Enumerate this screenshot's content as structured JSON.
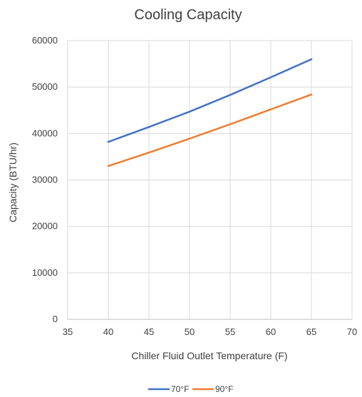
{
  "chart_data": {
    "type": "line",
    "title": "Cooling Capacity",
    "xlabel": "Chiller Fluid Outlet Temperature (F)",
    "ylabel": "Capacity (BTU/hr)",
    "xlim": [
      35,
      70
    ],
    "ylim": [
      0,
      60000
    ],
    "xticks": [
      35,
      40,
      45,
      50,
      55,
      60,
      65,
      70
    ],
    "yticks": [
      0,
      10000,
      20000,
      30000,
      40000,
      50000,
      60000
    ],
    "grid": true,
    "legend_position": "bottom",
    "series": [
      {
        "name": "70°F",
        "color": "#4472c4",
        "x": [
          40,
          45,
          50,
          55,
          60,
          65
        ],
        "y": [
          38200,
          41400,
          44700,
          48300,
          52100,
          56000
        ]
      },
      {
        "name": "90°F",
        "color": "#ed7d31",
        "x": [
          40,
          45,
          50,
          55,
          60,
          65
        ],
        "y": [
          33000,
          35900,
          38900,
          42000,
          45200,
          48400
        ]
      }
    ]
  }
}
